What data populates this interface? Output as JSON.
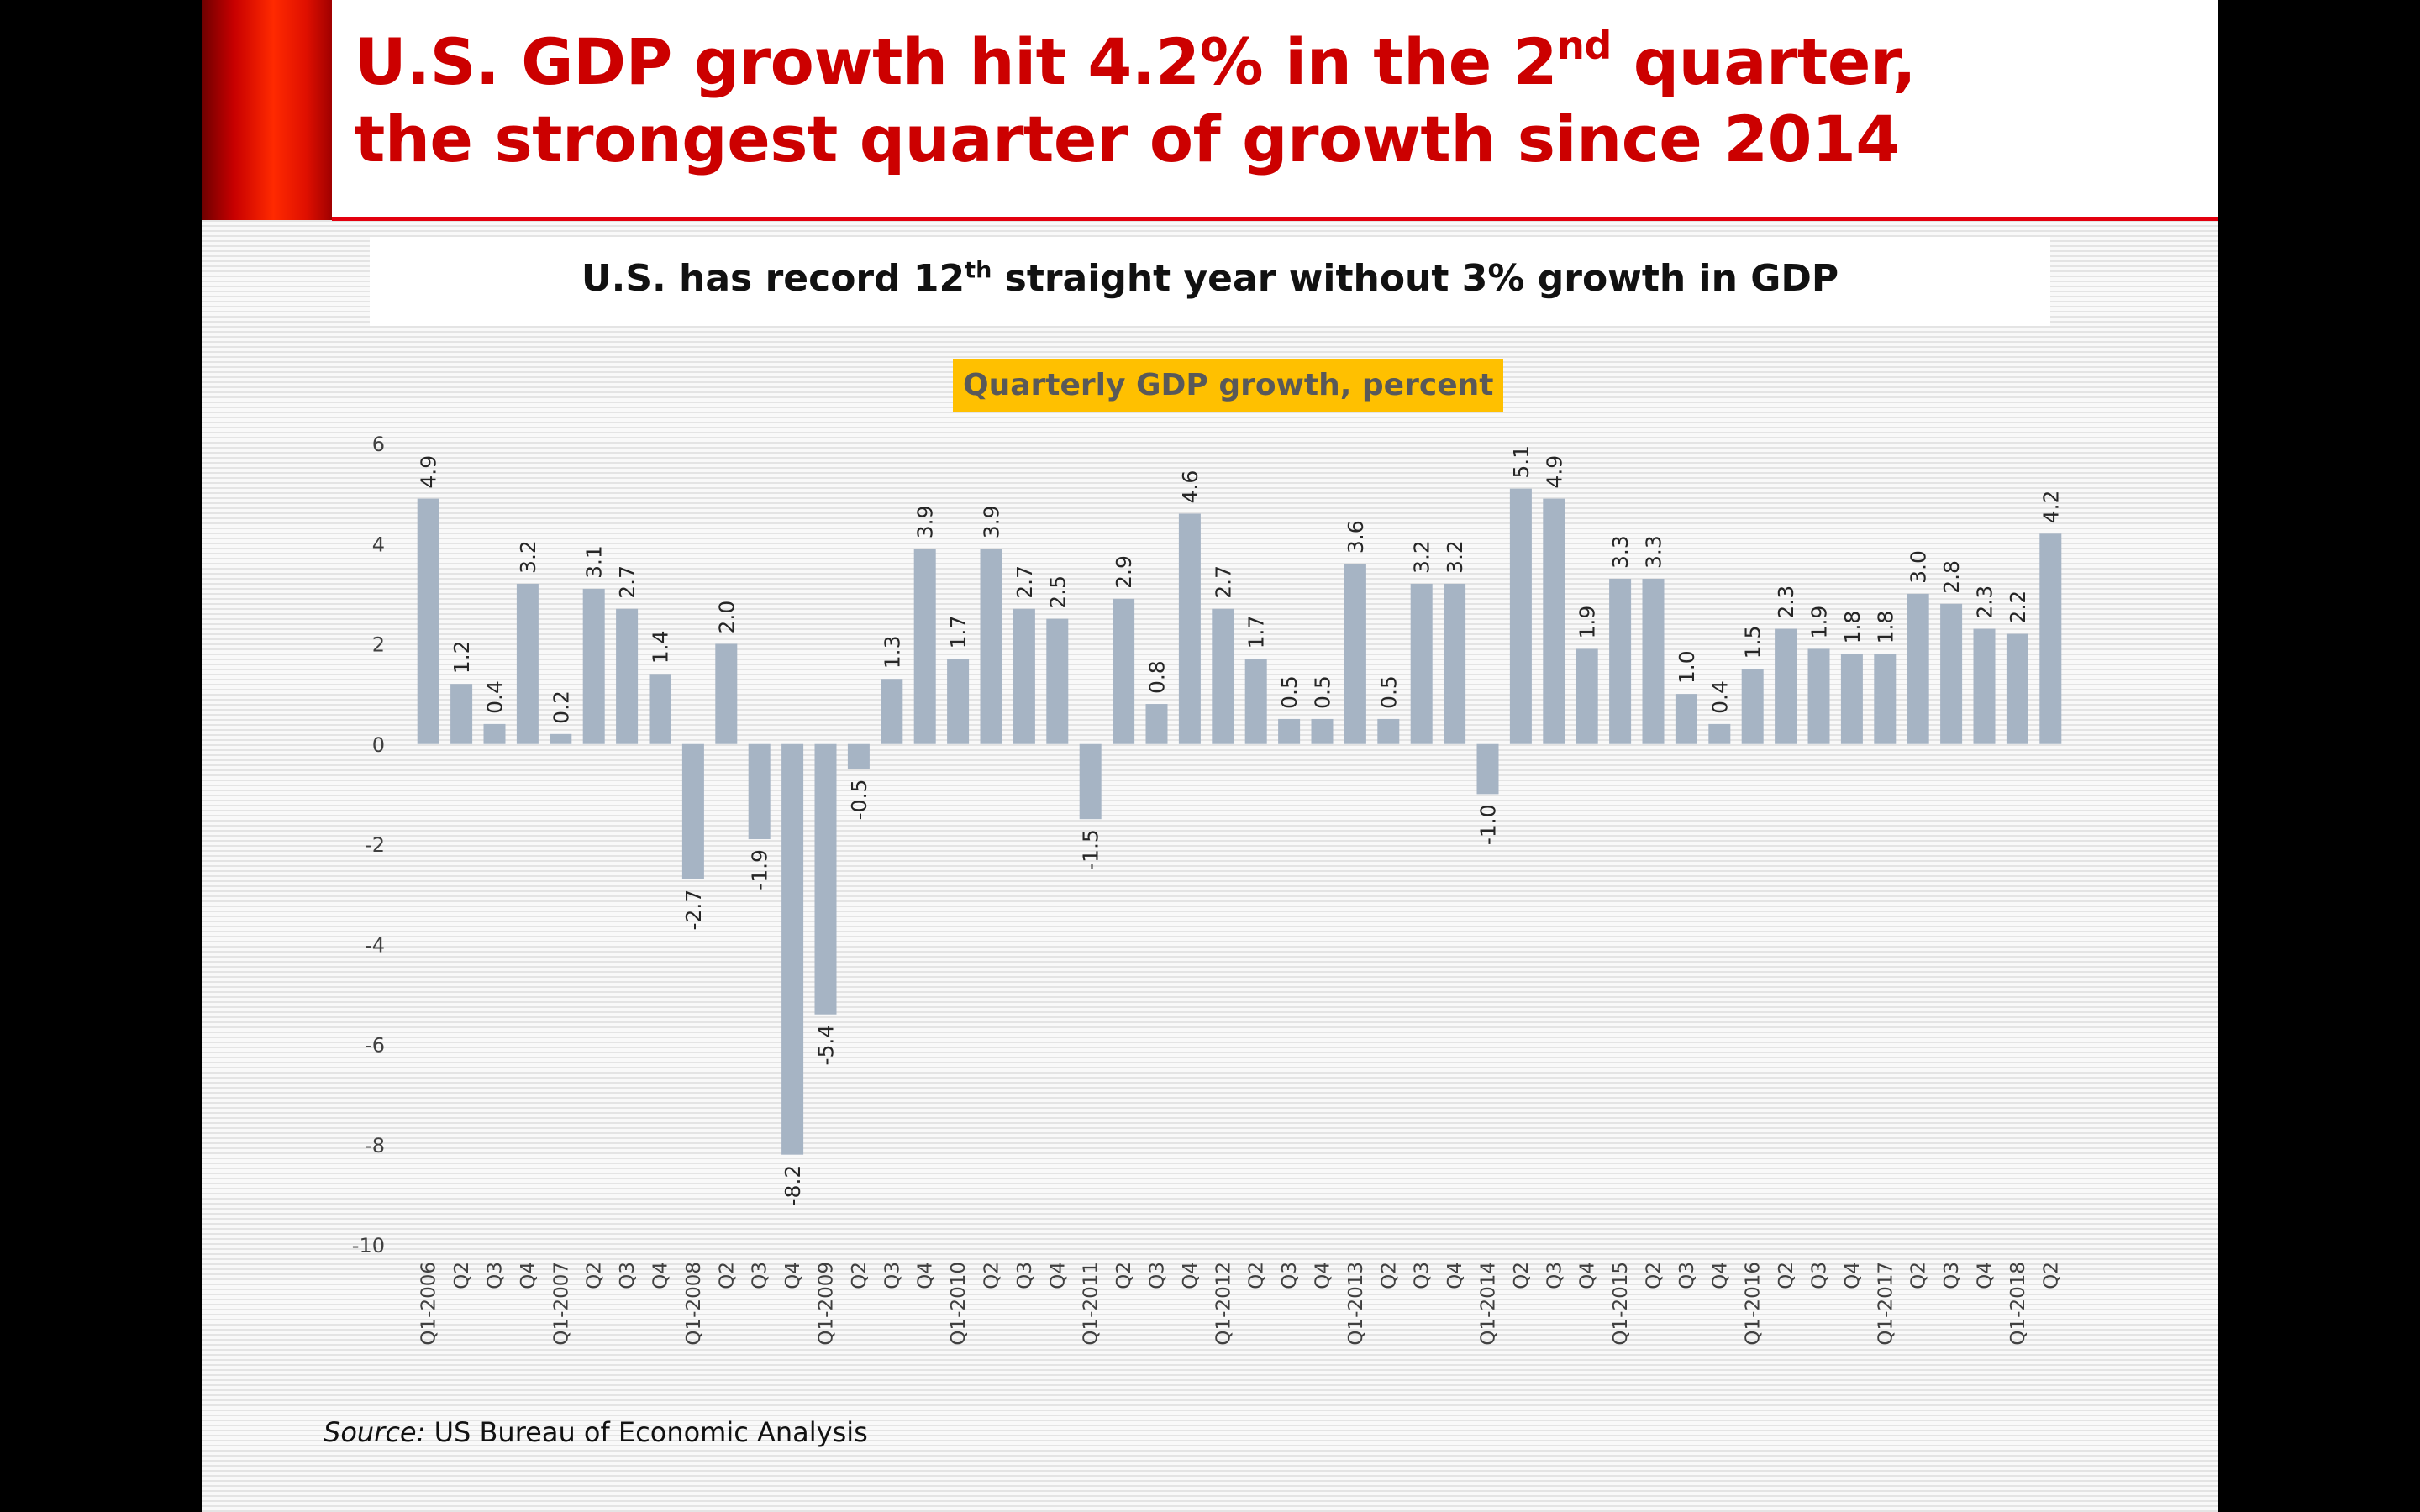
{
  "slide": {
    "title_line1_pre": "U.S. GDP growth hit 4.2% in the 2",
    "title_line1_sup": "nd",
    "title_line1_post": " quarter,",
    "title_line2": "the strongest quarter of growth since 2014",
    "subtitle_pre": "U.S. has record 12",
    "subtitle_sup": "th",
    "subtitle_post": " straight year without 3% growth in GDP",
    "source_label": "Source:",
    "source_text": " US Bureau of Economic Analysis"
  },
  "colors": {
    "title_red": "#cc0000",
    "bar": "#a6b4c4",
    "chart_title_bg": "#ffc000",
    "chart_title_text": "#595959"
  },
  "chart_data": {
    "type": "bar",
    "title": "Quarterly GDP growth, percent",
    "xlabel": "",
    "ylabel": "",
    "ylim": [
      -10,
      6
    ],
    "yticks": [
      6,
      4,
      2,
      0,
      -2,
      -4,
      -6,
      -8,
      -10
    ],
    "grid": false,
    "categories": [
      "Q1-2006",
      "Q2",
      "Q3",
      "Q4",
      "Q1-2007",
      "Q2",
      "Q3",
      "Q4",
      "Q1-2008",
      "Q2",
      "Q3",
      "Q4",
      "Q1-2009",
      "Q2",
      "Q3",
      "Q4",
      "Q1-2010",
      "Q2",
      "Q3",
      "Q4",
      "Q1-2011",
      "Q2",
      "Q3",
      "Q4",
      "Q1-2012",
      "Q2",
      "Q3",
      "Q4",
      "Q1-2013",
      "Q2",
      "Q3",
      "Q4",
      "Q1-2014",
      "Q2",
      "Q3",
      "Q4",
      "Q1-2015",
      "Q2",
      "Q3",
      "Q4",
      "Q1-2016",
      "Q2",
      "Q3",
      "Q4",
      "Q1-2017",
      "Q2",
      "Q3",
      "Q4",
      "Q1-2018",
      "Q2"
    ],
    "values": [
      4.9,
      1.2,
      0.4,
      3.2,
      0.2,
      3.1,
      2.7,
      1.4,
      -2.7,
      2.0,
      -1.9,
      -8.2,
      -5.4,
      -0.5,
      1.3,
      3.9,
      1.7,
      3.9,
      2.7,
      2.5,
      -1.5,
      2.9,
      0.8,
      4.6,
      2.7,
      1.7,
      0.5,
      0.5,
      3.6,
      0.5,
      3.2,
      3.2,
      -1.0,
      5.1,
      4.9,
      1.9,
      3.3,
      3.3,
      1.0,
      0.4,
      1.5,
      2.3,
      1.9,
      1.8,
      1.8,
      3.0,
      2.8,
      2.3,
      2.2,
      4.2
    ],
    "data_labels": [
      "4.9",
      "1.2",
      "0.4",
      "3.2",
      "0.2",
      "3.1",
      "2.7",
      "1.4",
      "-2.7",
      "2.0",
      "-1.9",
      "-8.2",
      "-5.4",
      "-0.5",
      "1.3",
      "3.9",
      "1.7",
      "3.9",
      "2.7",
      "2.5",
      "-1.5",
      "2.9",
      "0.8",
      "4.6",
      "2.7",
      "1.7",
      "0.5",
      "0.5",
      "3.6",
      "0.5",
      "3.2",
      "3.2",
      "-1.0",
      "5.1",
      "4.9",
      "1.9",
      "3.3",
      "3.3",
      "1.0",
      "0.4",
      "1.5",
      "2.3",
      "1.9",
      "1.8",
      "1.8",
      "3.0",
      "2.8",
      "2.3",
      "2.2",
      "4.2"
    ]
  }
}
